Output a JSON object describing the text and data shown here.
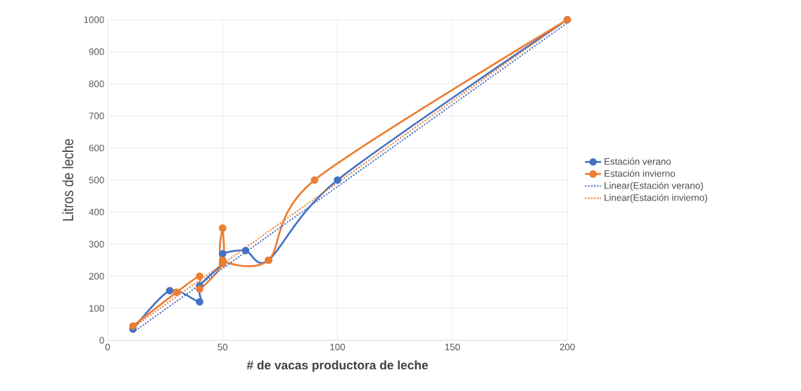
{
  "chart_data": {
    "type": "line",
    "xlabel": "# de vacas productora de leche",
    "ylabel": "Litros de leche",
    "xlim": [
      0,
      200
    ],
    "ylim": [
      0,
      1000
    ],
    "xticks": [
      0,
      50,
      100,
      150,
      200
    ],
    "yticks": [
      0,
      100,
      200,
      300,
      400,
      500,
      600,
      700,
      800,
      900,
      1000
    ],
    "grid": true,
    "legend": "right",
    "series": [
      {
        "name": "Estación verano",
        "color": "#4472c4",
        "marker": "circle",
        "line_style": "solid",
        "x": [
          11,
          27,
          40,
          40,
          50,
          50,
          60,
          70,
          100,
          200
        ],
        "values": [
          35,
          155,
          120,
          170,
          240,
          270,
          280,
          250,
          500,
          1000
        ]
      },
      {
        "name": "Estación invierno",
        "color": "#ed7d31",
        "marker": "circle",
        "line_style": "solid",
        "x": [
          11,
          30,
          40,
          40,
          50,
          50,
          50,
          70,
          90,
          200
        ],
        "values": [
          45,
          150,
          200,
          160,
          240,
          350,
          250,
          250,
          500,
          1000
        ]
      },
      {
        "name": "Linear(Estación verano)",
        "color": "#4472c4",
        "marker": "none",
        "line_style": "dotted",
        "x": [
          11,
          200
        ],
        "values": [
          25,
          990
        ]
      },
      {
        "name": "Linear(Estación invierno)",
        "color": "#ed7d31",
        "marker": "none",
        "line_style": "dotted",
        "x": [
          11,
          200
        ],
        "values": [
          40,
          1000
        ]
      }
    ]
  }
}
